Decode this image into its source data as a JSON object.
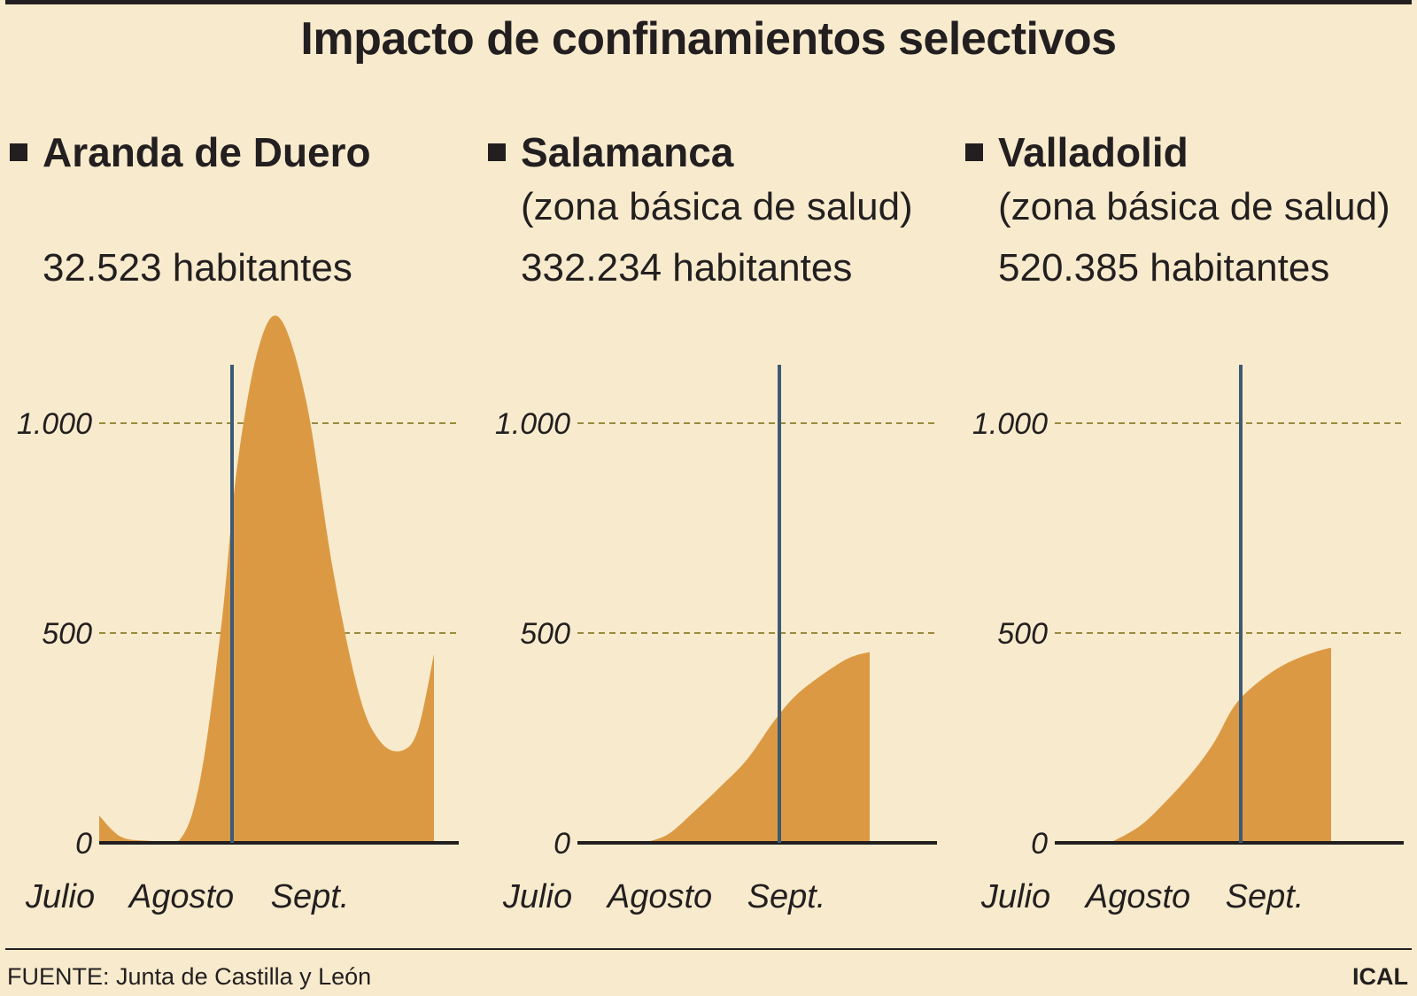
{
  "title": "Impacto de confinamientos selectivos",
  "colors": {
    "background": "#f8ebcd",
    "area": "#dc9944",
    "marker_line": "#3d5a74",
    "grid": "#9a8a40",
    "text": "#231f20"
  },
  "chart_data": [
    {
      "type": "area",
      "title": "Aranda de Duero",
      "subtitle": "",
      "population": "32.523 habitantes",
      "x_labels": [
        "Julio",
        "Agosto",
        "Sept."
      ],
      "y_ticks": [
        "1.000",
        "500",
        "0"
      ],
      "y_tick_values": [
        1000,
        500,
        0
      ],
      "ylim": [
        0,
        1250
      ],
      "xlim": [
        0,
        3.15
      ],
      "marker_x": 1.25,
      "series": [
        {
          "name": "Aranda de Duero",
          "points": [
            [
              0,
              65
            ],
            [
              0.2,
              15
            ],
            [
              0.45,
              5
            ],
            [
              0.75,
              5
            ],
            [
              0.95,
              150
            ],
            [
              1.15,
              520
            ],
            [
              1.3,
              900
            ],
            [
              1.5,
              1180
            ],
            [
              1.7,
              1250
            ],
            [
              1.95,
              1050
            ],
            [
              2.2,
              650
            ],
            [
              2.45,
              350
            ],
            [
              2.65,
              240
            ],
            [
              2.85,
              220
            ],
            [
              3.0,
              270
            ],
            [
              3.15,
              450
            ]
          ]
        }
      ]
    },
    {
      "type": "area",
      "title": "Salamanca",
      "subtitle": "(zona básica de salud)",
      "population": "332.234 habitantes",
      "x_labels": [
        "Julio",
        "Agosto",
        "Sept."
      ],
      "y_ticks": [
        "1.000",
        "500",
        "0"
      ],
      "y_tick_values": [
        1000,
        500,
        0
      ],
      "ylim": [
        0,
        1250
      ],
      "xlim": [
        0,
        3.15
      ],
      "marker_x": 1.9,
      "series": [
        {
          "name": "Salamanca",
          "points": [
            [
              0.62,
              0
            ],
            [
              0.85,
              20
            ],
            [
              1.1,
              75
            ],
            [
              1.35,
              135
            ],
            [
              1.6,
              200
            ],
            [
              1.85,
              290
            ],
            [
              2.05,
              350
            ],
            [
              2.3,
              400
            ],
            [
              2.55,
              440
            ],
            [
              2.75,
              455
            ]
          ]
        }
      ]
    },
    {
      "type": "area",
      "title": "Valladolid",
      "subtitle": "(zona básica de salud)",
      "population": "520.385 habitantes",
      "x_labels": [
        "Julio",
        "Agosto",
        "Sept."
      ],
      "y_ticks": [
        "1.000",
        "500",
        "0"
      ],
      "y_tick_values": [
        1000,
        500,
        0
      ],
      "ylim": [
        0,
        1250
      ],
      "xlim": [
        0,
        3.15
      ],
      "marker_x": 1.75,
      "series": [
        {
          "name": "Valladolid",
          "points": [
            [
              0.52,
              0
            ],
            [
              0.8,
              40
            ],
            [
              1.05,
              100
            ],
            [
              1.3,
              170
            ],
            [
              1.5,
              240
            ],
            [
              1.7,
              330
            ],
            [
              1.95,
              390
            ],
            [
              2.2,
              430
            ],
            [
              2.45,
              455
            ],
            [
              2.6,
              465
            ]
          ]
        }
      ]
    }
  ],
  "footer": {
    "source": "FUENTE: Junta de Castilla y León",
    "credit": "ICAL"
  }
}
